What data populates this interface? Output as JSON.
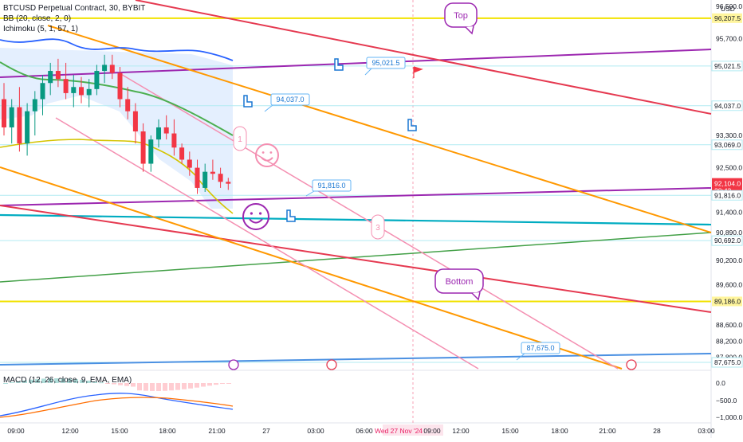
{
  "legend": {
    "symbol_line": "BTCUSD Perpetual Contract, 30, BYBIT",
    "bb_line": "BB (20, close, 2, 0)",
    "ichimoku_line": "Ichimoku (5, 1, 57, 1)",
    "macd_line": "MACD (12, 26, close, 9, EMA, EMA)"
  },
  "colors": {
    "up": "#089981",
    "down": "#f23645",
    "bb_mid": "#4caf50",
    "bb_upper": "#2962ff",
    "ichimoku": "#1e88e5",
    "yellow": "#f2e200",
    "orange": "#ff9800",
    "red": "#e91e63",
    "purple": "#9c27b0",
    "teal": "#00acc1",
    "pink": "#f48fb1",
    "blue_line": "#4a90e2",
    "cloud": "#dbeafe"
  },
  "chart_data": {
    "type": "candlestick",
    "price_axis": {
      "unit": "USD",
      "ticks": [
        "96,500.0",
        "95,700.0",
        "93,300.0",
        "92,500.0",
        "91,400.0",
        "90,890.0",
        "90,200.0",
        "89,600.0",
        "88,600.0",
        "88,200.0",
        "87,800.0"
      ],
      "tick_values": [
        96500,
        95700,
        93300,
        92500,
        91400,
        90890,
        90200,
        89600,
        88600,
        88200,
        87800
      ],
      "range": [
        87500,
        97000
      ]
    },
    "price_labels": [
      {
        "text": "96,207.5",
        "value": 96207.5,
        "style": "yellow"
      },
      {
        "text": "95,021.5",
        "value": 95021.5,
        "style": "plain"
      },
      {
        "text": "94,037.0",
        "value": 94037.0,
        "style": "plain"
      },
      {
        "text": "93,069.0",
        "value": 93069.0,
        "style": "plain"
      },
      {
        "text": "92,104.0",
        "value": 92104.0,
        "style": "current",
        "sub": "28:43"
      },
      {
        "text": "91,816.0",
        "value": 91816.0,
        "style": "plain"
      },
      {
        "text": "90,692.0",
        "value": 90692.0,
        "style": "plain"
      },
      {
        "text": "89,186.0",
        "value": 89186.0,
        "style": "yellow"
      },
      {
        "text": "87,675.0",
        "value": 87675.0,
        "style": "plain"
      }
    ],
    "time_axis": [
      "09:00",
      "12:00",
      "15:00",
      "18:00",
      "21:00",
      "27",
      "03:00",
      "06:00",
      "Wed 27 Nov '24",
      "09:00",
      "12:00",
      "15:00",
      "18:00",
      "21:00",
      "28",
      "03:00"
    ],
    "candles": [
      {
        "o": 94200,
        "h": 94600,
        "l": 93300,
        "c": 93500
      },
      {
        "o": 93500,
        "h": 94200,
        "l": 93100,
        "c": 94000
      },
      {
        "o": 94000,
        "h": 94500,
        "l": 92900,
        "c": 93100
      },
      {
        "o": 93100,
        "h": 94100,
        "l": 92800,
        "c": 93900
      },
      {
        "o": 93900,
        "h": 94400,
        "l": 93300,
        "c": 94200
      },
      {
        "o": 94200,
        "h": 94800,
        "l": 93800,
        "c": 94600
      },
      {
        "o": 94600,
        "h": 95100,
        "l": 94300,
        "c": 94900
      },
      {
        "o": 94900,
        "h": 95200,
        "l": 94500,
        "c": 94700
      },
      {
        "o": 94700,
        "h": 95100,
        "l": 94200,
        "c": 94350
      },
      {
        "o": 94350,
        "h": 94800,
        "l": 94000,
        "c": 94500
      },
      {
        "o": 94500,
        "h": 94750,
        "l": 94100,
        "c": 94300
      },
      {
        "o": 94300,
        "h": 94700,
        "l": 94000,
        "c": 94450
      },
      {
        "o": 94450,
        "h": 95050,
        "l": 94300,
        "c": 94900
      },
      {
        "o": 94900,
        "h": 95300,
        "l": 94600,
        "c": 95050
      },
      {
        "o": 95050,
        "h": 95300,
        "l": 94700,
        "c": 94850
      },
      {
        "o": 94850,
        "h": 95000,
        "l": 94000,
        "c": 94200
      },
      {
        "o": 94200,
        "h": 94500,
        "l": 93700,
        "c": 93900
      },
      {
        "o": 93900,
        "h": 94100,
        "l": 93100,
        "c": 93400
      },
      {
        "o": 93400,
        "h": 93600,
        "l": 92400,
        "c": 92600
      },
      {
        "o": 92600,
        "h": 93300,
        "l": 92400,
        "c": 93200
      },
      {
        "o": 93200,
        "h": 93700,
        "l": 93000,
        "c": 93500
      },
      {
        "o": 93500,
        "h": 93800,
        "l": 93200,
        "c": 93350
      },
      {
        "o": 93350,
        "h": 93700,
        "l": 92800,
        "c": 93000
      },
      {
        "o": 93000,
        "h": 93100,
        "l": 92600,
        "c": 92700
      },
      {
        "o": 92700,
        "h": 92900,
        "l": 92300,
        "c": 92500
      },
      {
        "o": 92500,
        "h": 92700,
        "l": 91850,
        "c": 92000
      },
      {
        "o": 92000,
        "h": 92600,
        "l": 91900,
        "c": 92400
      },
      {
        "o": 92400,
        "h": 92700,
        "l": 92200,
        "c": 92350
      },
      {
        "o": 92350,
        "h": 92500,
        "l": 92000,
        "c": 92150
      },
      {
        "o": 92150,
        "h": 92250,
        "l": 91950,
        "c": 92104
      }
    ],
    "annotations": [
      "Top",
      "Bottom",
      "1",
      "3",
      "95,021.5",
      "94,037.0",
      "91,816.0",
      "87,675.0"
    ],
    "macd_axis": [
      "0.0",
      "−500.0",
      "−1,000.0"
    ]
  }
}
